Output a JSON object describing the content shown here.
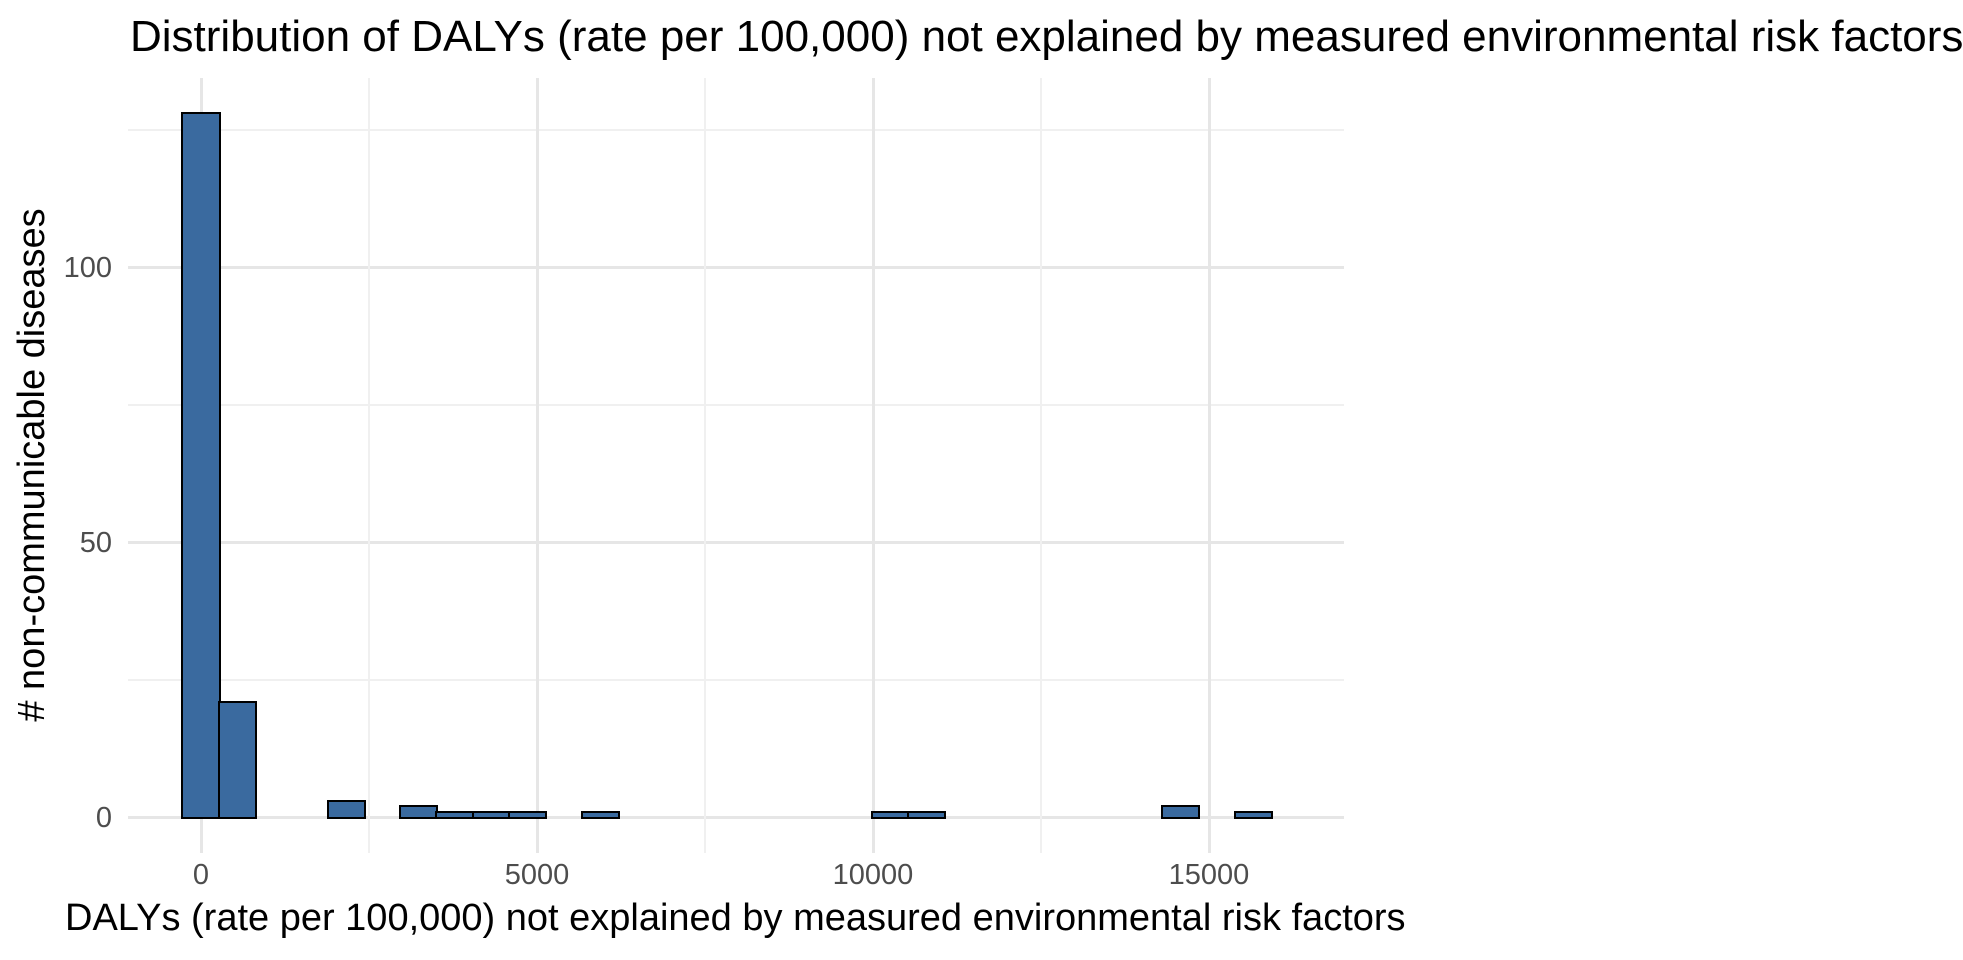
{
  "chart_data": {
    "type": "bar",
    "subtype": "histogram",
    "title": "Distribution of DALYs (rate per 100,000) not explained by measured environmental risk factors",
    "xlabel": "DALYs (rate per 100,000) not explained by measured environmental risk factors",
    "ylabel": "# non-communicable diseases",
    "binwidth": 540,
    "bin_centers": [
      0,
      540,
      1080,
      1620,
      2160,
      2700,
      3240,
      3780,
      4320,
      4860,
      5400,
      5940,
      6480,
      7020,
      7560,
      8100,
      8640,
      9180,
      9720,
      10260,
      10800,
      11340,
      11880,
      12420,
      12960,
      13500,
      14040,
      14580,
      15120,
      15660
    ],
    "counts": [
      128,
      21,
      0,
      0,
      3,
      0,
      2,
      1,
      1,
      1,
      0,
      1,
      0,
      0,
      0,
      0,
      0,
      0,
      0,
      1,
      1,
      0,
      0,
      0,
      0,
      0,
      0,
      2,
      0,
      1
    ],
    "x_axis": {
      "tick_values": [
        0,
        5000,
        10000,
        15000
      ],
      "tick_labels": [
        "0",
        "5000",
        "10000",
        "15000"
      ],
      "minor_tick_values": [
        2500,
        7500,
        12500
      ]
    },
    "y_axis": {
      "tick_values": [
        0,
        50,
        100
      ],
      "tick_labels": [
        "0",
        "50",
        "100"
      ],
      "minor_tick_values": [
        25,
        75,
        125
      ]
    },
    "xlim": [
      -1080,
      17000
    ],
    "ylim": [
      -6.4,
      134.4
    ],
    "grid": "on",
    "legend": "none",
    "colors": {
      "bar_fill": "#3a6a9f",
      "bar_stroke": "#000000",
      "grid_major": "#e6e6e6",
      "grid_minor": "#f0f0f0",
      "tick_text": "#4d4d4d",
      "title_text": "#000000",
      "background": "#ffffff"
    }
  }
}
